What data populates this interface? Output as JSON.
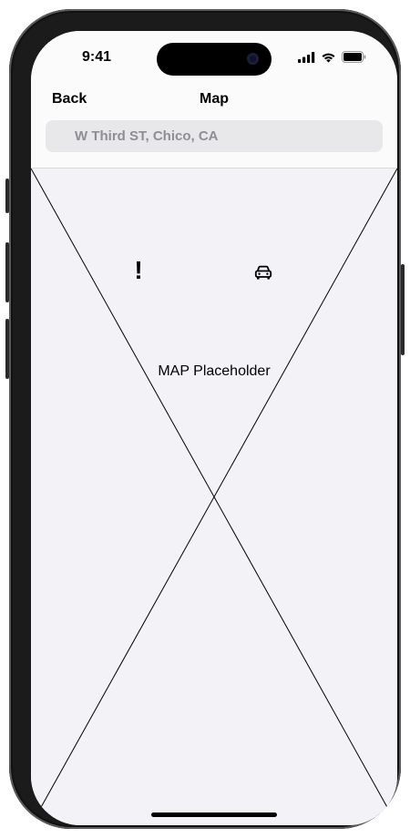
{
  "status_bar": {
    "time": "9:41",
    "icons": [
      "cellular-signal-icon",
      "wifi-icon",
      "battery-icon"
    ]
  },
  "nav": {
    "back_label": "Back",
    "title": "Map"
  },
  "search": {
    "value": "W Third ST, Chico, CA"
  },
  "map": {
    "placeholder_label": "MAP Placeholder",
    "markers": [
      {
        "icon": "exclamation-icon",
        "glyph": "!"
      },
      {
        "icon": "car-icon"
      }
    ]
  },
  "colors": {
    "screen_bg": "#f2f2f7",
    "bar_bg": "#fbfbfb",
    "search_bg": "#e8e8ea",
    "search_text": "#8e8e93",
    "frame": "#1b1b1b"
  }
}
